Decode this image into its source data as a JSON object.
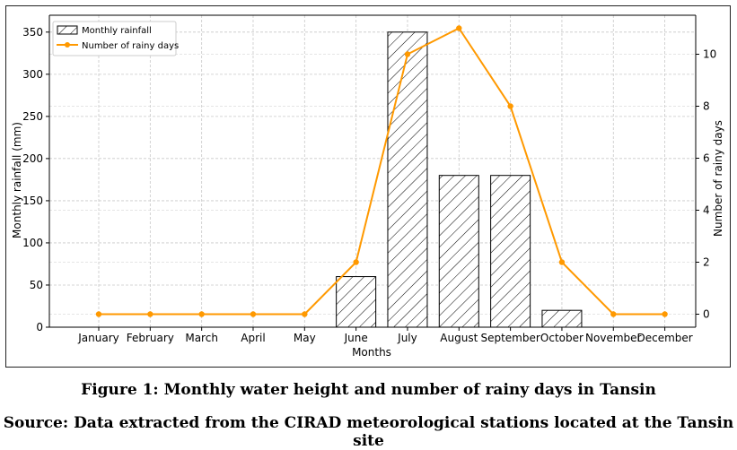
{
  "chart_data": {
    "type": "bar",
    "categories": [
      "January",
      "February",
      "March",
      "April",
      "May",
      "June",
      "July",
      "August",
      "September",
      "October",
      "November",
      "December"
    ],
    "series": [
      {
        "name": "Monthly rainfall",
        "type": "bar",
        "axis": "left",
        "values": [
          0,
          0,
          0,
          0,
          0,
          60,
          350,
          180,
          180,
          20,
          0,
          0
        ]
      },
      {
        "name": "Number of rainy days",
        "type": "line",
        "axis": "right",
        "color": "#ff9900",
        "values": [
          0,
          0,
          0,
          0,
          0,
          2,
          10,
          11,
          8,
          2,
          0,
          0
        ]
      }
    ],
    "xlabel": "Months",
    "ylabel": "Monthly rainfall (mm)",
    "y2label": "Number of rainy days",
    "ylim": [
      0,
      370
    ],
    "y2lim": [
      -0.5,
      11.5
    ],
    "yticks": [
      0,
      50,
      100,
      150,
      200,
      250,
      300,
      350
    ],
    "y2ticks": [
      0,
      2,
      4,
      6,
      8,
      10
    ],
    "grid": true,
    "legend": "top-left"
  },
  "caption": {
    "figure": "Figure 1: Monthly water height and number of rainy days in Tansin",
    "source_label": "Source",
    "source_text": ": Data extracted from the CIRAD meteorological stations located at the Tansin site"
  }
}
